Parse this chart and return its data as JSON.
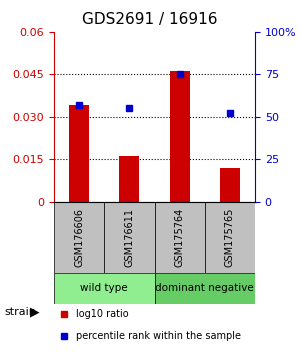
{
  "title": "GDS2691 / 16916",
  "samples": [
    "GSM176606",
    "GSM176611",
    "GSM175764",
    "GSM175765"
  ],
  "log10_ratio": [
    0.034,
    0.016,
    0.046,
    0.012
  ],
  "percentile_rank_pct": [
    57,
    55,
    75,
    52
  ],
  "ylim_left": [
    0,
    0.06
  ],
  "ylim_right": [
    0,
    100
  ],
  "yticks_left": [
    0,
    0.015,
    0.03,
    0.045,
    0.06
  ],
  "yticks_right": [
    0,
    25,
    50,
    75,
    100
  ],
  "ytick_labels_left": [
    "0",
    "0.015",
    "0.030",
    "0.045",
    "0.06"
  ],
  "ytick_labels_right": [
    "0",
    "25",
    "50",
    "75",
    "100%"
  ],
  "groups": [
    {
      "label": "wild type",
      "samples": [
        0,
        1
      ],
      "color": "#90EE90"
    },
    {
      "label": "dominant negative",
      "samples": [
        2,
        3
      ],
      "color": "#66CC66"
    }
  ],
  "bar_color": "#CC0000",
  "dot_color": "#0000CC",
  "bg_color": "#FFFFFF",
  "sample_box_color": "#C0C0C0",
  "strain_label": "strain",
  "legend_red": "log10 ratio",
  "legend_blue": "percentile rank within the sample"
}
